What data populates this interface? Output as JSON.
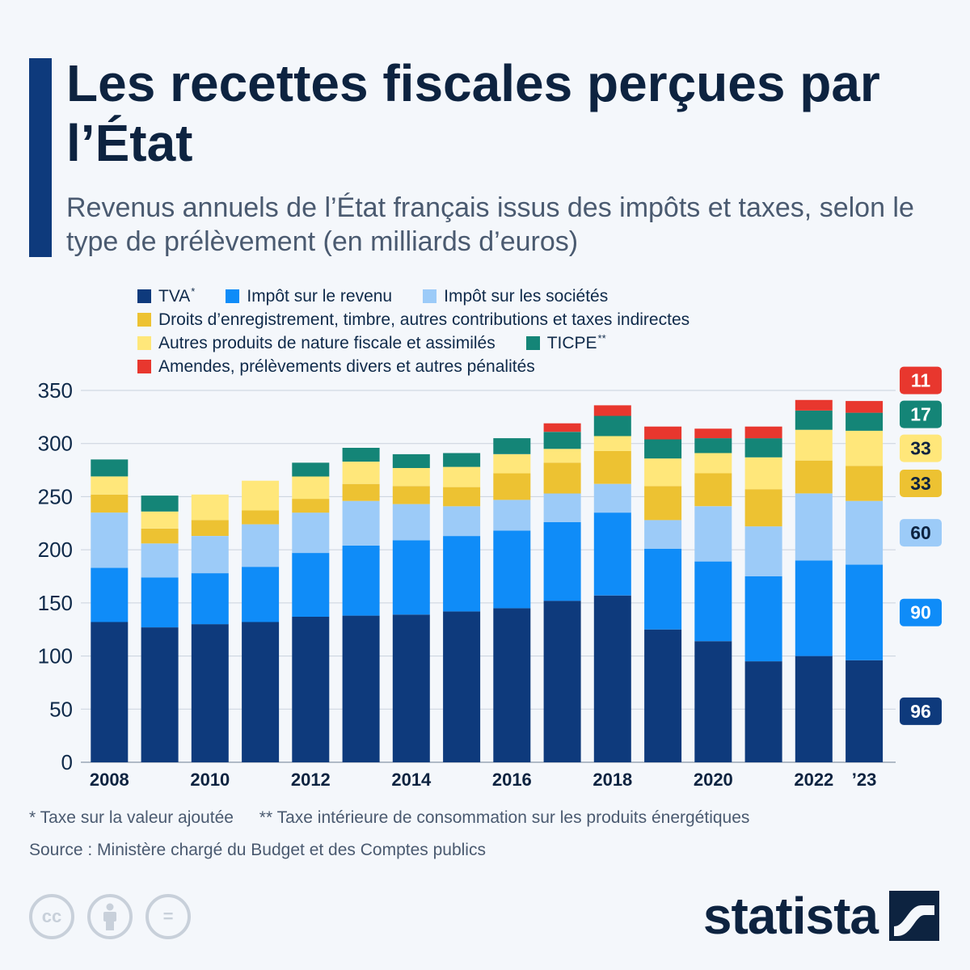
{
  "title": "Les recettes fiscales perçues par l’État",
  "subtitle": "Revenus annuels de l’État français issus des impôts et taxes, selon le type de prélèvement (en milliards d’euros)",
  "legend_rows": [
    [
      {
        "label": "TVA",
        "sup": "*",
        "series": 0
      },
      {
        "label": "Impôt sur le revenu",
        "sup": "",
        "series": 1
      },
      {
        "label": "Impôt sur les sociétés",
        "sup": "",
        "series": 2
      }
    ],
    [
      {
        "label": "Droits d’enregistrement, timbre, autres contributions et taxes indirectes",
        "sup": "",
        "series": 3
      }
    ],
    [
      {
        "label": "Autres produits de nature fiscale et assimilés",
        "sup": "",
        "series": 4
      },
      {
        "label": "TICPE",
        "sup": "**",
        "series": 5
      }
    ],
    [
      {
        "label": "Amendes, prélèvements divers et autres pénalités",
        "sup": "",
        "series": 6
      }
    ]
  ],
  "chart_data": {
    "type": "bar",
    "stacked": true,
    "x": [
      "2008",
      "2009",
      "2010",
      "2011",
      "2012",
      "2013",
      "2014",
      "2015",
      "2016",
      "2017",
      "2018",
      "2019",
      "2020",
      "2021",
      "2022",
      "2023"
    ],
    "x_tick_labels": {
      "2008": "2008",
      "2010": "2010",
      "2012": "2012",
      "2014": "2014",
      "2016": "2016",
      "2018": "2018",
      "2020": "2020",
      "2022": "2022",
      "2023": "’23"
    },
    "ylim": [
      0,
      350
    ],
    "yticks": [
      0,
      50,
      100,
      150,
      200,
      250,
      300,
      350
    ],
    "grid": true,
    "series": [
      {
        "name": "TVA",
        "color": "#0e3a7c",
        "values": [
          132,
          127,
          130,
          132,
          137,
          138,
          139,
          142,
          145,
          152,
          157,
          125,
          114,
          95,
          100,
          96
        ]
      },
      {
        "name": "Impôt sur le revenu",
        "color": "#0f8cf8",
        "values": [
          51,
          47,
          48,
          52,
          60,
          66,
          70,
          71,
          73,
          74,
          78,
          76,
          75,
          80,
          90,
          90
        ]
      },
      {
        "name": "Impôt sur les sociétés",
        "color": "#9ccbf8",
        "values": [
          52,
          32,
          35,
          40,
          38,
          42,
          34,
          28,
          29,
          27,
          27,
          27,
          52,
          47,
          63,
          60
        ]
      },
      {
        "name": "Droits d’enregistrement, timbre, autres contributions et taxes indirectes",
        "color": "#edc232",
        "values": [
          17,
          14,
          15,
          13,
          13,
          16,
          17,
          18,
          25,
          29,
          31,
          32,
          31,
          35,
          31,
          33
        ]
      },
      {
        "name": "Autres produits de nature fiscale et assimilés",
        "color": "#ffe77a",
        "values": [
          17,
          16,
          24,
          28,
          21,
          21,
          17,
          19,
          18,
          13,
          14,
          26,
          19,
          30,
          29,
          33
        ]
      },
      {
        "name": "TICPE",
        "color": "#148577",
        "values": [
          16,
          15,
          0,
          0,
          13,
          13,
          13,
          13,
          15,
          16,
          19,
          18,
          14,
          18,
          18,
          17
        ]
      },
      {
        "name": "Amendes, prélèvements divers et autres pénalités",
        "color": "#e8372e",
        "values": [
          0,
          0,
          0,
          0,
          0,
          0,
          0,
          0,
          0,
          8,
          10,
          12,
          9,
          11,
          10,
          11
        ]
      }
    ],
    "end_labels": [
      {
        "value": "96",
        "series": 0,
        "text_color": "#ffffff"
      },
      {
        "value": "90",
        "series": 1,
        "text_color": "#ffffff"
      },
      {
        "value": "60",
        "series": 2,
        "text_color": "#0d2340"
      },
      {
        "value": "33",
        "series": 3,
        "text_color": "#0d2340"
      },
      {
        "value": "33",
        "series": 4,
        "text_color": "#0d2340"
      },
      {
        "value": "17",
        "series": 5,
        "text_color": "#ffffff"
      },
      {
        "value": "11",
        "series": 6,
        "text_color": "#ffffff"
      }
    ]
  },
  "footnotes": {
    "tva": "* Taxe sur la valeur ajoutée",
    "ticpe": "** Taxe intérieure de consommation sur les produits énergétiques"
  },
  "source": "Source : Ministère chargé du Budget et des Comptes publics",
  "cc_icons": [
    {
      "icon": "creative-commons-icon",
      "glyph": "cc"
    },
    {
      "icon": "attribution-icon",
      "glyph": ""
    },
    {
      "icon": "no-derivatives-icon",
      "glyph": "="
    }
  ],
  "brand": {
    "name": "statista",
    "logo_icon": "statista-logo-icon"
  }
}
